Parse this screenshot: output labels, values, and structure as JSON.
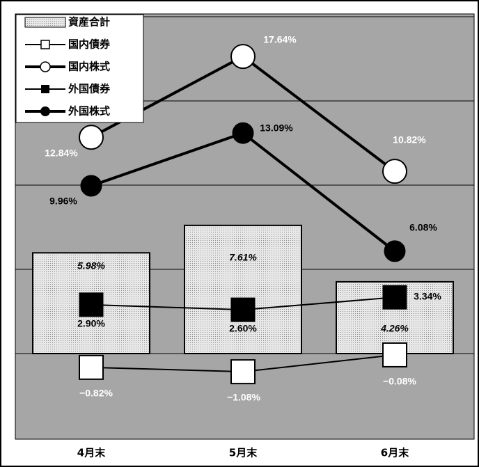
{
  "chart_data": {
    "type": "bar",
    "categories": [
      "4月末",
      "5月末",
      "6月末"
    ],
    "ylim": [
      -3,
      21
    ],
    "grid": true,
    "legend_position": "top-left",
    "bar_series": {
      "name": "資産合計",
      "values": [
        5.98,
        7.61,
        4.26
      ],
      "labels": [
        "5.98%",
        "7.61%",
        "4.26%"
      ]
    },
    "line_series": [
      {
        "name": "国内債券",
        "marker": "open-square",
        "values": [
          -0.82,
          -1.08,
          -0.08
        ],
        "labels": [
          "−0.82%",
          "−1.08%",
          "−0.08%"
        ]
      },
      {
        "name": "国内株式",
        "marker": "open-circle",
        "values": [
          12.84,
          17.64,
          10.82
        ],
        "labels": [
          "12.84%",
          "17.64%",
          "10.82%"
        ]
      },
      {
        "name": "外国債券",
        "marker": "filled-square",
        "values": [
          2.9,
          2.6,
          3.34
        ],
        "labels": [
          "2.90%",
          "2.60%",
          "3.34%"
        ]
      },
      {
        "name": "外国株式",
        "marker": "filled-circle",
        "values": [
          9.96,
          13.09,
          6.08
        ],
        "labels": [
          "9.96%",
          "13.09%",
          "6.08%"
        ]
      }
    ],
    "colors": {
      "plot_bg": "#a6a6a6",
      "bar_fill": "#e4e4e4",
      "line": "#000000",
      "open_marker": "#ffffff"
    }
  }
}
